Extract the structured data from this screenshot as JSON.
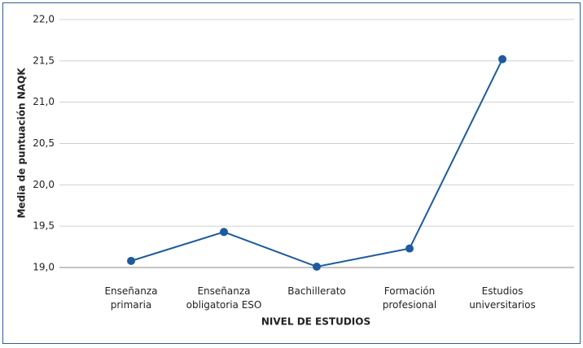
{
  "chart_data": {
    "type": "line",
    "y_label": "Media de puntuación NAQK",
    "x_label": "NIVEL DE ESTUDIOS",
    "categories": [
      "Enseñanza primaria",
      "Enseñanza obligatoria ESO",
      "Bachillerato",
      "Formación profesional",
      "Estudios universitarios"
    ],
    "values": [
      19.08,
      19.43,
      19.01,
      19.23,
      21.52
    ],
    "color": "#1d5b9e",
    "ylim": [
      19.0,
      22.0
    ],
    "yticks": [
      {
        "value": 19.0,
        "label": "19,0"
      },
      {
        "value": 19.5,
        "label": "19,5"
      },
      {
        "value": 20.0,
        "label": "20,0"
      },
      {
        "value": 20.5,
        "label": "20,5"
      },
      {
        "value": 21.0,
        "label": "21,0"
      },
      {
        "value": 21.5,
        "label": "21,5"
      },
      {
        "value": 22.0,
        "label": "22,0"
      }
    ],
    "grid": true
  }
}
